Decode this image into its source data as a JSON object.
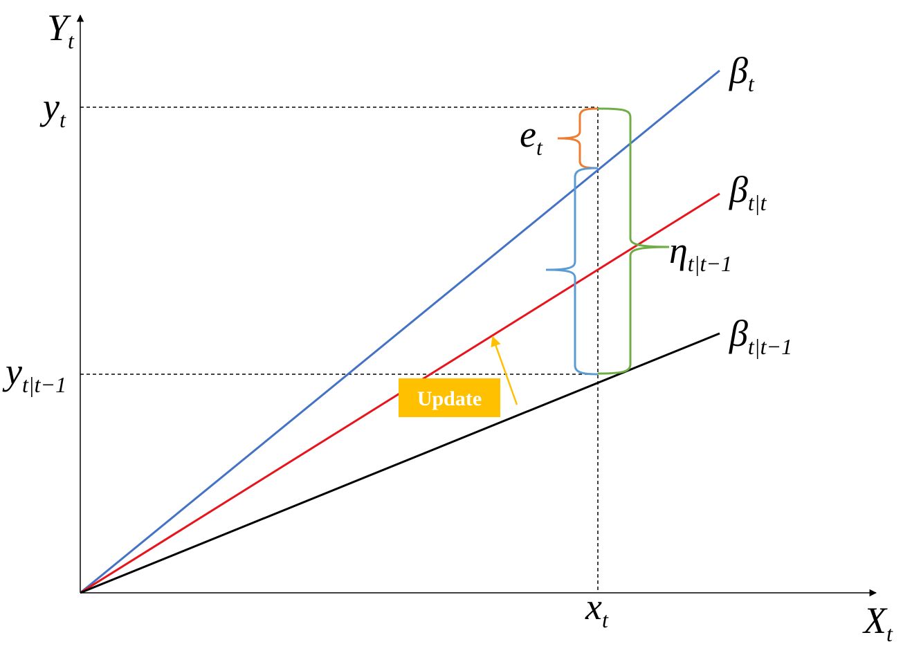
{
  "axes": {
    "y_axis": {
      "label": "Y",
      "subscript": "t"
    },
    "x_axis": {
      "label": "X",
      "subscript": "t"
    }
  },
  "ticks": {
    "x_t": {
      "label": "x",
      "subscript": "t"
    },
    "y_t": {
      "label": "y",
      "subscript": "t"
    },
    "y_pred": {
      "label": "y",
      "subscript": "t|t−1"
    }
  },
  "lines": [
    {
      "id": "beta-t",
      "label": "β",
      "subscript": "t",
      "color": "#4472C4"
    },
    {
      "id": "beta-t-given-t",
      "label": "β",
      "subscript": "t|t",
      "color": "#E8141C"
    },
    {
      "id": "beta-t-given-t-minus-1",
      "label": "β",
      "subscript": "t|t−1",
      "color": "#000000"
    }
  ],
  "braces": {
    "error": {
      "label": "e",
      "subscript": "t",
      "color": "#ED7D31"
    },
    "eta": {
      "label": "η",
      "subscript": "t|t−1",
      "color": "#70AD47"
    },
    "middle": {
      "color": "#5B9BD5"
    }
  },
  "update_box": {
    "label": "Update",
    "background": "#FFC000",
    "arrow_color": "#FFC000"
  }
}
